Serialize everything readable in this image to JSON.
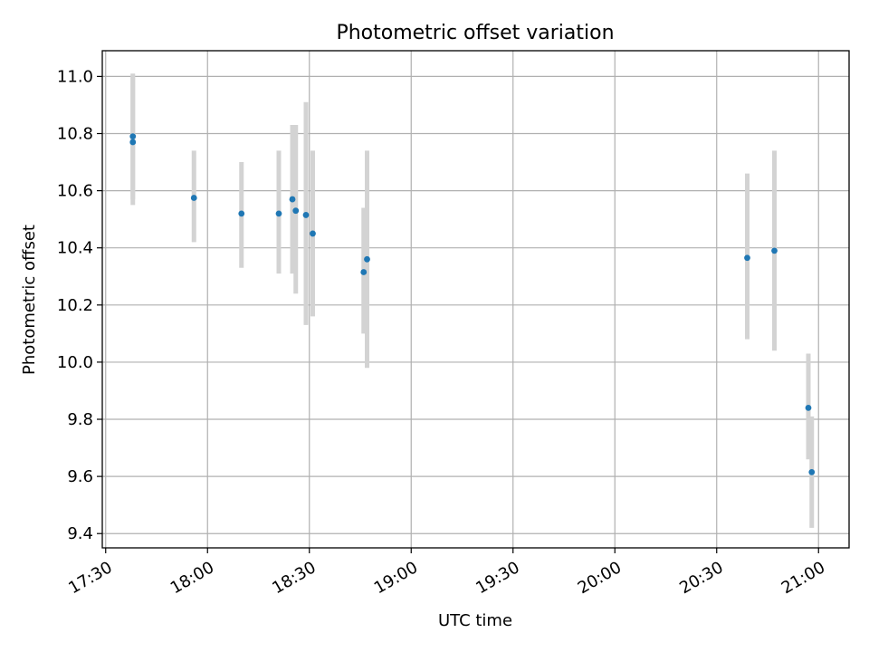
{
  "chart_data": {
    "type": "scatter",
    "title": "Photometric offset variation",
    "xlabel": "UTC time",
    "ylabel": "Photometric offset",
    "xlim": [
      "17:29",
      "21:09"
    ],
    "ylim": [
      9.35,
      11.09
    ],
    "x_ticks": [
      "17:30",
      "18:00",
      "18:30",
      "19:00",
      "19:30",
      "20:00",
      "20:30",
      "21:00"
    ],
    "y_ticks": [
      "9.4",
      "9.6",
      "9.8",
      "10.0",
      "10.2",
      "10.4",
      "10.6",
      "10.8",
      "11.0"
    ],
    "grid": true,
    "series": [
      {
        "marker_color": "#1f77b4",
        "errorbar_color": "#d3d3d3",
        "points": [
          {
            "x": "17:38",
            "y": 10.77,
            "low": 10.55,
            "high": 11.0
          },
          {
            "x": "17:38",
            "y": 10.79,
            "low": 10.57,
            "high": 11.01
          },
          {
            "x": "17:56",
            "y": 10.575,
            "low": 10.42,
            "high": 10.74
          },
          {
            "x": "18:10",
            "y": 10.52,
            "low": 10.33,
            "high": 10.7
          },
          {
            "x": "18:21",
            "y": 10.52,
            "low": 10.31,
            "high": 10.74
          },
          {
            "x": "18:25",
            "y": 10.57,
            "low": 10.31,
            "high": 10.83
          },
          {
            "x": "18:26",
            "y": 10.53,
            "low": 10.24,
            "high": 10.83
          },
          {
            "x": "18:29",
            "y": 10.515,
            "low": 10.13,
            "high": 10.91
          },
          {
            "x": "18:31",
            "y": 10.45,
            "low": 10.16,
            "high": 10.74
          },
          {
            "x": "18:46",
            "y": 10.315,
            "low": 10.1,
            "high": 10.54
          },
          {
            "x": "18:47",
            "y": 10.36,
            "low": 9.98,
            "high": 10.74
          },
          {
            "x": "20:39",
            "y": 10.365,
            "low": 10.08,
            "high": 10.66
          },
          {
            "x": "20:47",
            "y": 10.39,
            "low": 10.04,
            "high": 10.74
          },
          {
            "x": "20:57",
            "y": 9.84,
            "low": 9.66,
            "high": 10.03
          },
          {
            "x": "20:58",
            "y": 9.615,
            "low": 9.42,
            "high": 9.81
          }
        ]
      }
    ]
  }
}
